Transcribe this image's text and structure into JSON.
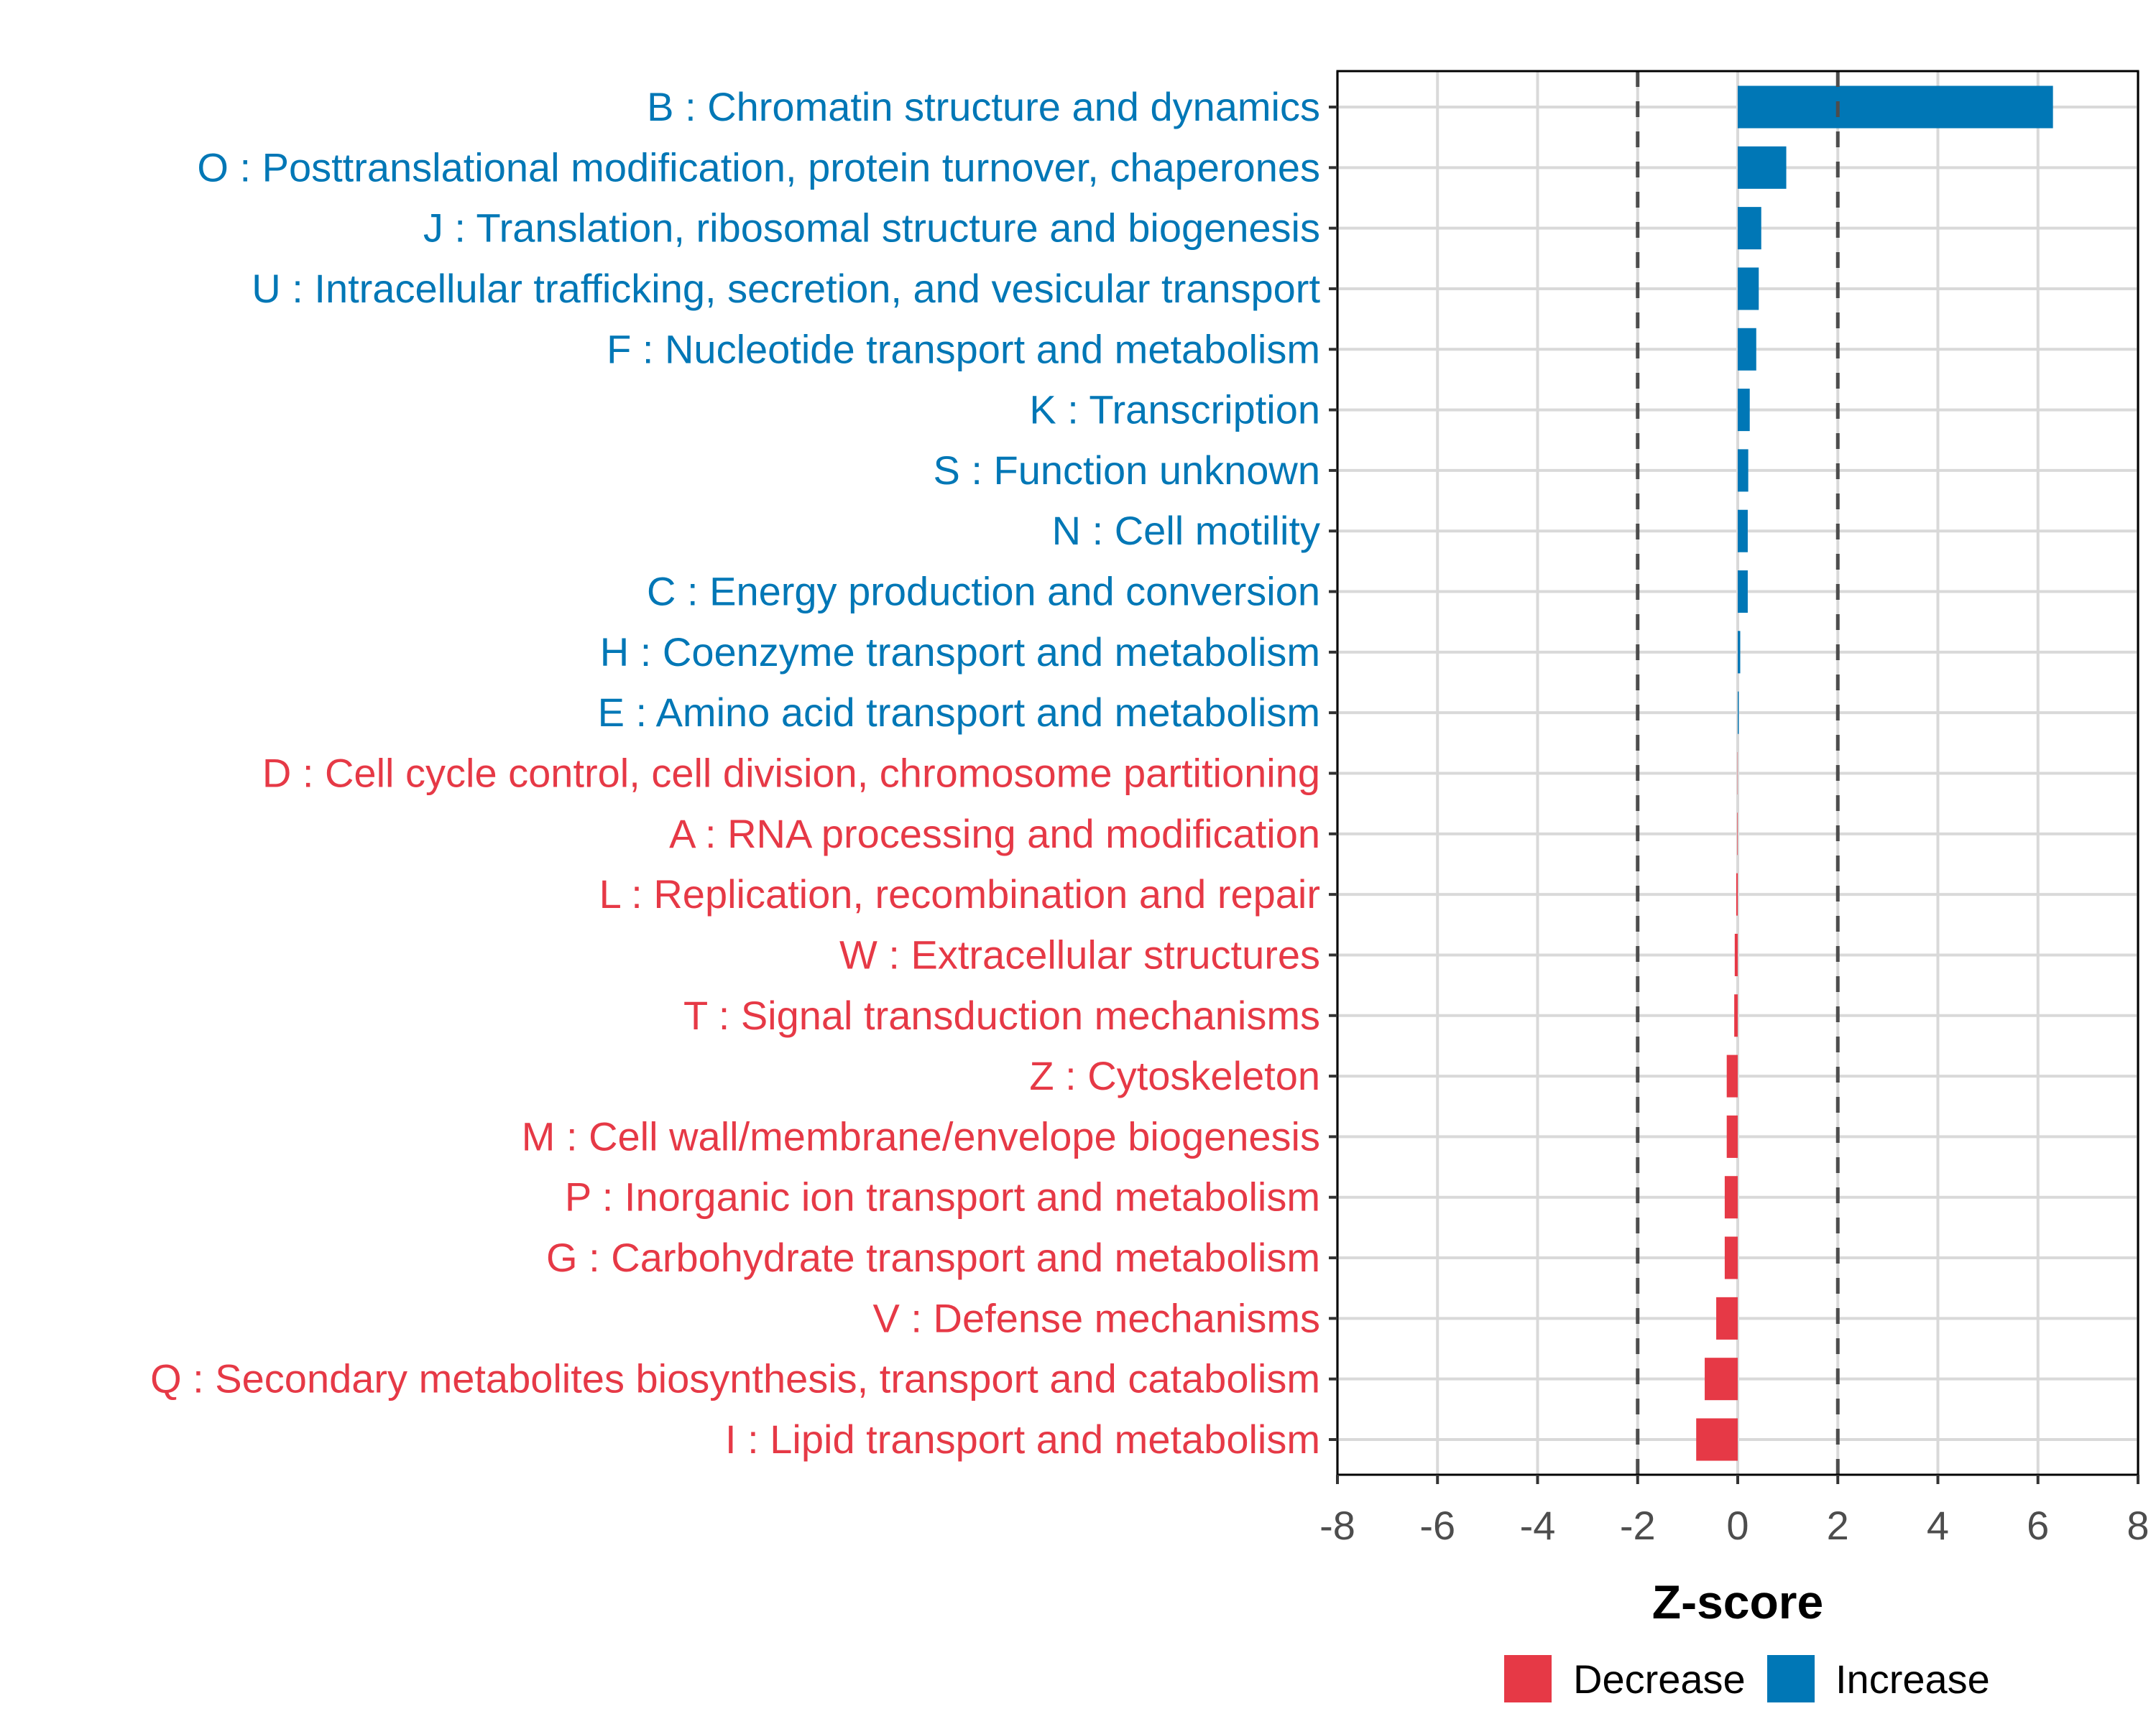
{
  "chart_data": {
    "type": "bar",
    "orientation": "horizontal",
    "title": "",
    "xlabel": "Z-score",
    "ylabel": "",
    "xlim": [
      -8,
      8
    ],
    "xticks": [
      -8,
      -6,
      -4,
      -2,
      0,
      2,
      4,
      6,
      8
    ],
    "xtick_labels": [
      "-8",
      "-6",
      "-4",
      "-2",
      "0",
      "2",
      "4",
      "6",
      "8"
    ],
    "grid": true,
    "reference_lines": [
      {
        "x": -2,
        "style": "dashed",
        "color": "#4d4d4d"
      },
      {
        "x": 2,
        "style": "dashed",
        "color": "#4d4d4d"
      }
    ],
    "legend": {
      "placement": "bottom",
      "entries": [
        {
          "label": "Decrease",
          "color": "#E63946"
        },
        {
          "label": "Increase",
          "color": "#0077B6"
        }
      ]
    },
    "categories": [
      {
        "label": "B : Chromatin structure and dynamics",
        "value": 6.3,
        "direction": "Increase"
      },
      {
        "label": "O : Posttranslational modification, protein turnover, chaperones",
        "value": 0.97,
        "direction": "Increase"
      },
      {
        "label": "J : Translation, ribosomal structure and biogenesis",
        "value": 0.47,
        "direction": "Increase"
      },
      {
        "label": "U : Intracellular trafficking, secretion, and vesicular transport",
        "value": 0.42,
        "direction": "Increase"
      },
      {
        "label": "F : Nucleotide transport and metabolism",
        "value": 0.37,
        "direction": "Increase"
      },
      {
        "label": "K : Transcription",
        "value": 0.24,
        "direction": "Increase"
      },
      {
        "label": "S : Function unknown",
        "value": 0.21,
        "direction": "Increase"
      },
      {
        "label": "N : Cell motility",
        "value": 0.2,
        "direction": "Increase"
      },
      {
        "label": "C : Energy production and conversion",
        "value": 0.2,
        "direction": "Increase"
      },
      {
        "label": "H : Coenzyme transport and metabolism",
        "value": 0.05,
        "direction": "Increase"
      },
      {
        "label": "E : Amino acid transport and metabolism",
        "value": 0.02,
        "direction": "Increase"
      },
      {
        "label": "D : Cell cycle control, cell division, chromosome partitioning",
        "value": -0.005,
        "direction": "Decrease"
      },
      {
        "label": "A : RNA processing and modification",
        "value": -0.01,
        "direction": "Decrease"
      },
      {
        "label": "L : Replication, recombination and repair",
        "value": -0.03,
        "direction": "Decrease"
      },
      {
        "label": "W : Extracellular structures",
        "value": -0.06,
        "direction": "Decrease"
      },
      {
        "label": "T : Signal transduction mechanisms",
        "value": -0.07,
        "direction": "Decrease"
      },
      {
        "label": "Z : Cytoskeleton",
        "value": -0.22,
        "direction": "Decrease"
      },
      {
        "label": "M : Cell wall/membrane/envelope biogenesis",
        "value": -0.22,
        "direction": "Decrease"
      },
      {
        "label": "P : Inorganic ion transport and metabolism",
        "value": -0.26,
        "direction": "Decrease"
      },
      {
        "label": "G : Carbohydrate transport and metabolism",
        "value": -0.26,
        "direction": "Decrease"
      },
      {
        "label": "V : Defense mechanisms",
        "value": -0.43,
        "direction": "Decrease"
      },
      {
        "label": "Q : Secondary metabolites biosynthesis, transport and catabolism",
        "value": -0.66,
        "direction": "Decrease"
      },
      {
        "label": "I : Lipid transport and metabolism",
        "value": -0.83,
        "direction": "Decrease"
      }
    ]
  },
  "colors": {
    "Increase": "#0077B6",
    "Decrease": "#E63946",
    "grid": "#d9d9d9",
    "axis": "#000000",
    "tick": "#333333"
  }
}
